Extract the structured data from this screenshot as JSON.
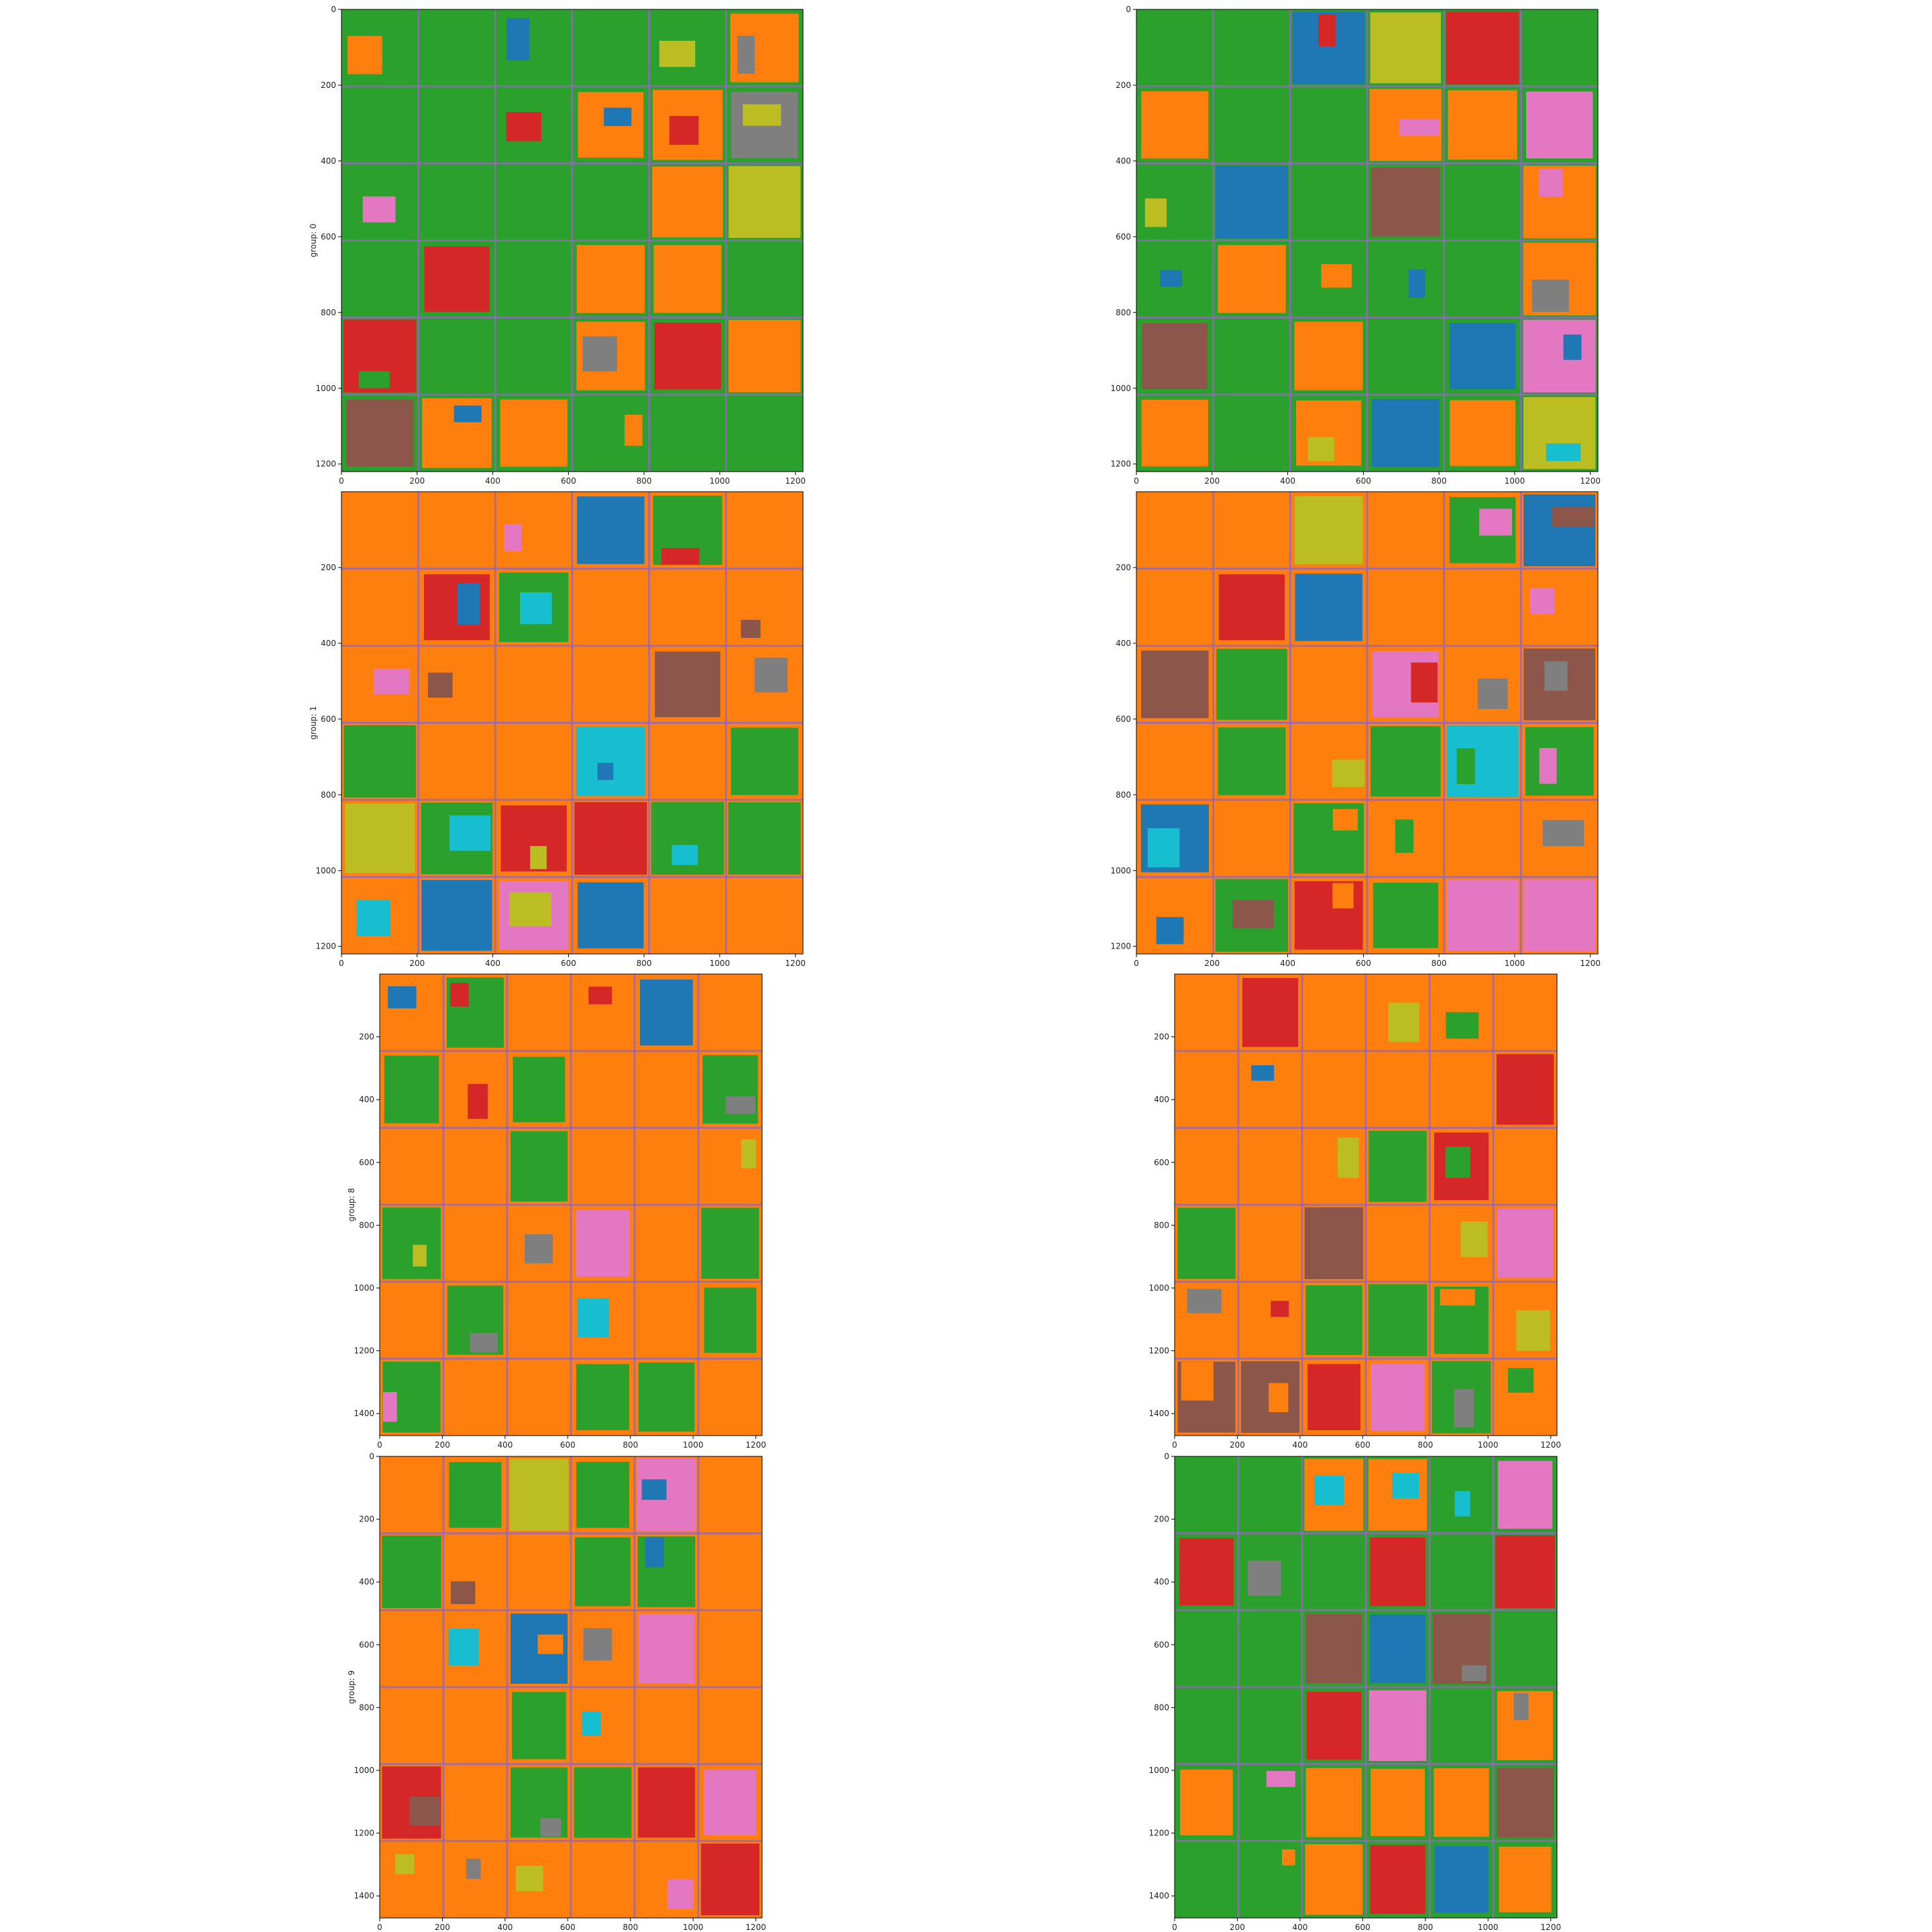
{
  "figure": {
    "type": "segmentation-map-grid",
    "rows": 4,
    "cols": 2
  },
  "palette": {
    "blue": "#1f77b4",
    "orange": "#ff7f0e",
    "green": "#2ca02c",
    "red": "#d62728",
    "purple": "#9467bd",
    "brown": "#8c564b",
    "pink": "#e377c2",
    "gray": "#7f7f7f",
    "olive": "#bcbd22",
    "cyan": "#17becf"
  },
  "chart_data": [
    {
      "type": "heatmap",
      "row_label": "group: 0",
      "xticks": [
        "0",
        "200",
        "400",
        "600",
        "800",
        "1000",
        "1200"
      ],
      "yticks": [
        "0",
        "200",
        "400",
        "600",
        "800",
        "1000",
        "1200"
      ],
      "xlim": [
        0,
        1220
      ],
      "ylim": [
        1220,
        0
      ],
      "panels": [
        {
          "id": "r0c0",
          "dominant": "green",
          "seed": 11
        },
        {
          "id": "r0c1",
          "dominant": "green",
          "seed": 23
        }
      ]
    },
    {
      "type": "heatmap",
      "row_label": "group: 1",
      "xticks": [
        "0",
        "200",
        "400",
        "600",
        "800",
        "1000",
        "1200"
      ],
      "yticks": [
        "200",
        "400",
        "600",
        "800",
        "1000",
        "1200"
      ],
      "xlim": [
        0,
        1220
      ],
      "ylim": [
        1220,
        0
      ],
      "panels": [
        {
          "id": "r1c0",
          "dominant": "orange",
          "seed": 37
        },
        {
          "id": "r1c1",
          "dominant": "orange",
          "seed": 41
        }
      ]
    },
    {
      "type": "heatmap",
      "row_label": "group: 8",
      "xticks": [
        "0",
        "200",
        "400",
        "600",
        "800",
        "1000",
        "1200"
      ],
      "yticks": [
        "200",
        "400",
        "600",
        "800",
        "1000",
        "1200",
        "1400"
      ],
      "xlim": [
        0,
        1220
      ],
      "ylim": [
        1470,
        0
      ],
      "panels": [
        {
          "id": "r2c0",
          "dominant": "orange",
          "seed": 53
        },
        {
          "id": "r2c1",
          "dominant": "orange",
          "seed": 67
        }
      ]
    },
    {
      "type": "heatmap",
      "row_label": "group: 9",
      "xticks": [
        "0",
        "200",
        "400",
        "600",
        "800",
        "1000",
        "1200"
      ],
      "yticks": [
        "0",
        "200",
        "400",
        "600",
        "800",
        "1000",
        "1200",
        "1400"
      ],
      "xlim": [
        0,
        1220
      ],
      "ylim": [
        1470,
        0
      ],
      "panels": [
        {
          "id": "r3c0",
          "dominant": "orange",
          "seed": 79
        },
        {
          "id": "r3c1",
          "dominant": "green",
          "seed": 83
        }
      ]
    }
  ]
}
